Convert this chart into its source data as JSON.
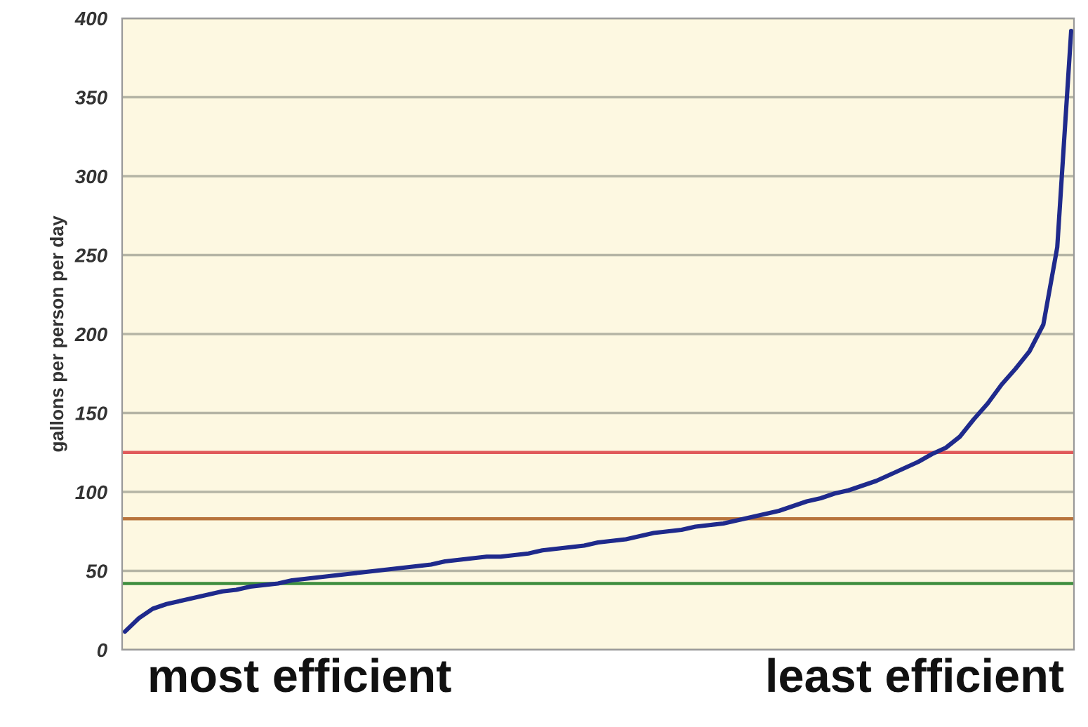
{
  "chart_data": {
    "type": "line",
    "ylabel": "gallons per person per day",
    "categories": [
      null,
      null,
      null,
      null,
      null,
      null,
      null,
      null,
      null,
      null,
      null,
      null,
      null,
      null,
      null,
      null,
      null,
      null,
      null,
      null,
      null,
      null,
      null,
      null,
      null,
      null,
      null,
      null,
      null,
      null,
      null,
      null,
      null,
      null,
      null,
      null,
      null,
      null,
      null,
      null,
      null,
      null,
      null,
      null,
      null,
      null,
      null,
      null,
      null,
      null,
      null,
      null,
      null,
      null,
      null,
      null,
      null,
      null,
      null,
      null,
      null,
      null,
      null,
      null,
      null,
      null,
      null,
      null,
      null
    ],
    "series": [
      {
        "color": "#1f2a8c",
        "values": [
          11.5,
          20,
          26,
          29,
          31,
          33,
          35,
          37,
          38,
          40,
          41,
          42,
          44,
          45,
          46,
          47,
          48,
          49,
          50,
          51,
          52,
          53,
          54,
          56,
          57,
          58,
          59,
          59,
          60,
          61,
          63,
          64,
          65,
          66,
          68,
          69,
          70,
          72,
          74,
          75,
          76,
          78,
          79,
          80,
          82,
          84,
          86,
          88,
          91,
          94,
          96,
          99,
          101,
          104,
          107,
          111,
          115,
          119,
          124,
          128,
          135,
          146,
          156,
          168,
          178,
          189,
          206,
          255,
          392
        ]
      }
    ],
    "ylim": [
      0,
      400
    ],
    "yticks": [
      0,
      50,
      100,
      150,
      200,
      250,
      300,
      350,
      400
    ],
    "grid": "y",
    "legend": false,
    "marker": "none",
    "line_style": "solid",
    "tick_labels": "y",
    "ref_lines": [
      {
        "axis": "y",
        "value": 125,
        "color": "#e05a5a"
      },
      {
        "axis": "y",
        "value": 83,
        "color": "#b8743c"
      },
      {
        "axis": "y",
        "value": 42,
        "color": "#3e8e3e"
      }
    ],
    "annotations": [
      "most efficient",
      "least efficient"
    ]
  }
}
